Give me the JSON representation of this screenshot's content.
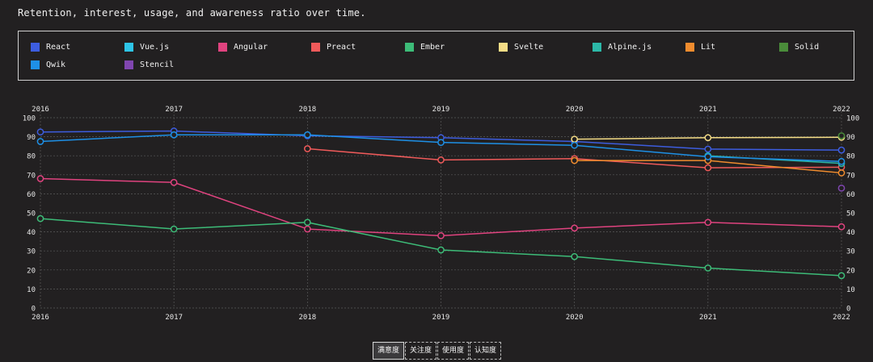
{
  "subtitle": "Retention, interest, usage, and awareness ratio over time.",
  "tabs": [
    {
      "label": "满意度",
      "active": true
    },
    {
      "label": "关注度",
      "active": false
    },
    {
      "label": "使用度",
      "active": false
    },
    {
      "label": "认知度",
      "active": false
    }
  ],
  "chart_data": {
    "type": "line",
    "title": "Retention, interest, usage, and awareness ratio over time.",
    "x": [
      "2016",
      "2017",
      "2018",
      "2019",
      "2020",
      "2021",
      "2022"
    ],
    "ylim": [
      0,
      100
    ],
    "yticks": [
      0,
      10,
      20,
      30,
      40,
      50,
      60,
      70,
      80,
      90,
      100
    ],
    "grid": true,
    "legend": "top",
    "series": [
      {
        "name": "React",
        "color": "#3d5ddf",
        "values": [
          92.5,
          93,
          90.5,
          89.5,
          87.5,
          83.5,
          83
        ]
      },
      {
        "name": "Vue.js",
        "color": "#2ec5e8",
        "values": [
          null,
          null,
          null,
          null,
          null,
          null,
          null
        ]
      },
      {
        "name": "Angular",
        "color": "#e0437f",
        "values": [
          68,
          66,
          41.5,
          38,
          42,
          45,
          42.7
        ]
      },
      {
        "name": "Preact",
        "color": "#ef5a5a",
        "values": [
          null,
          null,
          83.7,
          77.8,
          78.5,
          73.7,
          74
        ]
      },
      {
        "name": "Ember",
        "color": "#3dbc78",
        "values": [
          47,
          41.5,
          45,
          30.5,
          27,
          21,
          17
        ]
      },
      {
        "name": "Svelte",
        "color": "#f5dd86",
        "values": [
          null,
          null,
          null,
          null,
          88.7,
          89.5,
          89.7
        ]
      },
      {
        "name": "Alpine.js",
        "color": "#2cb8a8",
        "values": [
          null,
          null,
          null,
          null,
          null,
          80,
          76
        ]
      },
      {
        "name": "Lit",
        "color": "#f08c2e",
        "values": [
          null,
          null,
          null,
          null,
          77.5,
          77.5,
          71
        ]
      },
      {
        "name": "Solid",
        "color": "#4a8c3a",
        "values": [
          null,
          null,
          null,
          null,
          null,
          null,
          90.5
        ]
      },
      {
        "name": "Qwik",
        "color": "#1e90e6",
        "values": [
          87.5,
          91,
          91,
          87,
          85.5,
          79.5,
          77
        ]
      },
      {
        "name": "Stencil",
        "color": "#8046b0",
        "values": [
          null,
          null,
          null,
          null,
          null,
          null,
          63
        ]
      }
    ]
  }
}
